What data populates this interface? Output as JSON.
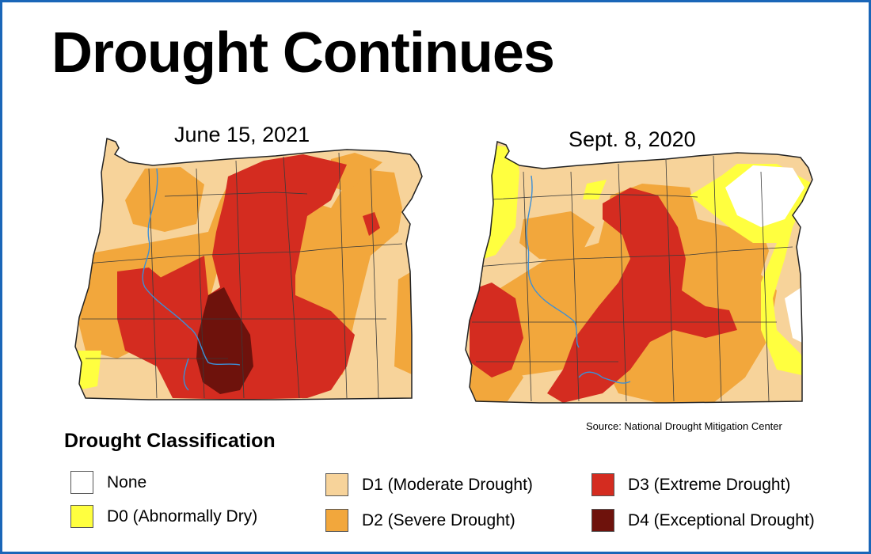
{
  "title": "Drought Continues",
  "maps": [
    {
      "date_label": "June 15, 2021"
    },
    {
      "date_label": "Sept. 8, 2020"
    }
  ],
  "source": "Source: National Drought Mitigation Center",
  "legend": {
    "title": "Drought Classification",
    "items": [
      {
        "label": "None",
        "color": "#ffffff"
      },
      {
        "label": "D0 (Abnormally Dry)",
        "color": "#ffff3f"
      },
      {
        "label": "D1 (Moderate Drought)",
        "color": "#f7d39a"
      },
      {
        "label": "D2 (Severe Drought)",
        "color": "#f2a73c"
      },
      {
        "label": "D3 (Extreme Drought)",
        "color": "#d42c20"
      },
      {
        "label": "D4 (Exceptional Drought)",
        "color": "#6e120c"
      }
    ]
  },
  "colors": {
    "border": "#1a66b8",
    "river": "#3d8fd6",
    "county_line": "#3a3a3a"
  }
}
